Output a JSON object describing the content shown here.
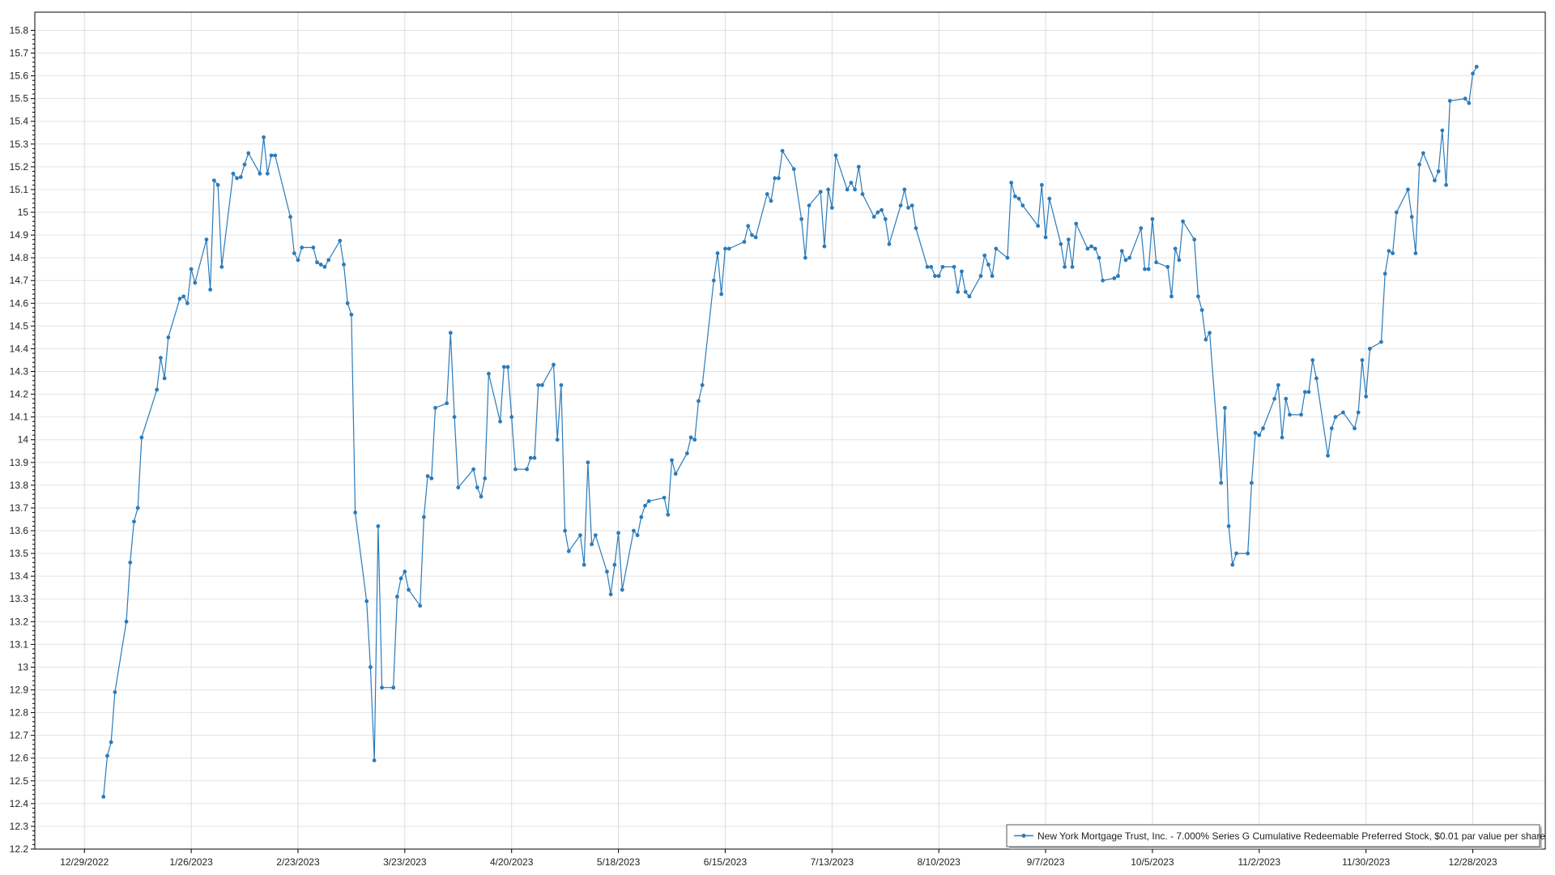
{
  "chart_data": {
    "type": "line",
    "title": "",
    "xlabel": "",
    "ylabel": "",
    "x_type": "date",
    "xlim": [
      "2022-12-16",
      "2024-01-16"
    ],
    "ylim": [
      12.2,
      15.88
    ],
    "grid": true,
    "legend_position": "bottom-right",
    "colors": {
      "series": "#2b7bba",
      "grid": "#e3e3e3",
      "axis": "#000000"
    },
    "x_ticks": [
      {
        "date": "2022-12-29",
        "label": "12/29/2022"
      },
      {
        "date": "2023-01-26",
        "label": "1/26/2023"
      },
      {
        "date": "2023-02-23",
        "label": "2/23/2023"
      },
      {
        "date": "2023-03-23",
        "label": "3/23/2023"
      },
      {
        "date": "2023-04-20",
        "label": "4/20/2023"
      },
      {
        "date": "2023-05-18",
        "label": "5/18/2023"
      },
      {
        "date": "2023-06-15",
        "label": "6/15/2023"
      },
      {
        "date": "2023-07-13",
        "label": "7/13/2023"
      },
      {
        "date": "2023-08-10",
        "label": "8/10/2023"
      },
      {
        "date": "2023-09-07",
        "label": "9/7/2023"
      },
      {
        "date": "2023-10-05",
        "label": "10/5/2023"
      },
      {
        "date": "2023-11-02",
        "label": "11/2/2023"
      },
      {
        "date": "2023-11-30",
        "label": "11/30/2023"
      },
      {
        "date": "2023-12-28",
        "label": "12/28/2023"
      }
    ],
    "y_ticks": [
      "12.2",
      "12.3",
      "12.4",
      "12.5",
      "12.6",
      "12.7",
      "12.8",
      "12.9",
      "13",
      "13.1",
      "13.2",
      "13.3",
      "13.4",
      "13.5",
      "13.6",
      "13.7",
      "13.8",
      "13.9",
      "14",
      "14.1",
      "14.2",
      "14.3",
      "14.4",
      "14.5",
      "14.6",
      "14.7",
      "14.8",
      "14.9",
      "15",
      "15.1",
      "15.2",
      "15.3",
      "15.4",
      "15.5",
      "15.6",
      "15.7",
      "15.8"
    ],
    "series": [
      {
        "name": "New York Mortgage Trust, Inc. - 7.000% Series G Cumulative Redeemable Preferred Stock, $0.01 par value per share",
        "marker": "circle",
        "points": [
          [
            "2023-01-03",
            12.43
          ],
          [
            "2023-01-04",
            12.61
          ],
          [
            "2023-01-05",
            12.67
          ],
          [
            "2023-01-06",
            12.89
          ],
          [
            "2023-01-09",
            13.2
          ],
          [
            "2023-01-10",
            13.46
          ],
          [
            "2023-01-11",
            13.64
          ],
          [
            "2023-01-12",
            13.7
          ],
          [
            "2023-01-13",
            14.01
          ],
          [
            "2023-01-17",
            14.22
          ],
          [
            "2023-01-18",
            14.36
          ],
          [
            "2023-01-19",
            14.27
          ],
          [
            "2023-01-20",
            14.45
          ],
          [
            "2023-01-23",
            14.62
          ],
          [
            "2023-01-24",
            14.63
          ],
          [
            "2023-01-25",
            14.6
          ],
          [
            "2023-01-26",
            14.75
          ],
          [
            "2023-01-27",
            14.69
          ],
          [
            "2023-01-30",
            14.88
          ],
          [
            "2023-01-31",
            14.66
          ],
          [
            "2023-02-01",
            15.14
          ],
          [
            "2023-02-02",
            15.12
          ],
          [
            "2023-02-03",
            14.76
          ],
          [
            "2023-02-06",
            15.17
          ],
          [
            "2023-02-07",
            15.15
          ],
          [
            "2023-02-08",
            15.155
          ],
          [
            "2023-02-09",
            15.21
          ],
          [
            "2023-02-10",
            15.26
          ],
          [
            "2023-02-13",
            15.17
          ],
          [
            "2023-02-14",
            15.33
          ],
          [
            "2023-02-15",
            15.17
          ],
          [
            "2023-02-16",
            15.25
          ],
          [
            "2023-02-17",
            15.25
          ],
          [
            "2023-02-21",
            14.98
          ],
          [
            "2023-02-22",
            14.82
          ],
          [
            "2023-02-23",
            14.79
          ],
          [
            "2023-02-24",
            14.845
          ],
          [
            "2023-02-27",
            14.845
          ],
          [
            "2023-02-28",
            14.78
          ],
          [
            "2023-03-01",
            14.77
          ],
          [
            "2023-03-02",
            14.76
          ],
          [
            "2023-03-03",
            14.79
          ],
          [
            "2023-03-06",
            14.875
          ],
          [
            "2023-03-07",
            14.77
          ],
          [
            "2023-03-08",
            14.6
          ],
          [
            "2023-03-09",
            14.55
          ],
          [
            "2023-03-10",
            13.68
          ],
          [
            "2023-03-13",
            13.29
          ],
          [
            "2023-03-14",
            13.0
          ],
          [
            "2023-03-15",
            12.59
          ],
          [
            "2023-03-16",
            13.62
          ],
          [
            "2023-03-17",
            12.91
          ],
          [
            "2023-03-20",
            12.91
          ],
          [
            "2023-03-21",
            13.31
          ],
          [
            "2023-03-22",
            13.39
          ],
          [
            "2023-03-23",
            13.42
          ],
          [
            "2023-03-24",
            13.34
          ],
          [
            "2023-03-27",
            13.27
          ],
          [
            "2023-03-28",
            13.66
          ],
          [
            "2023-03-29",
            13.84
          ],
          [
            "2023-03-30",
            13.83
          ],
          [
            "2023-03-31",
            14.14
          ],
          [
            "2023-04-03",
            14.16
          ],
          [
            "2023-04-04",
            14.47
          ],
          [
            "2023-04-05",
            14.1
          ],
          [
            "2023-04-06",
            13.79
          ],
          [
            "2023-04-10",
            13.87
          ],
          [
            "2023-04-11",
            13.79
          ],
          [
            "2023-04-12",
            13.75
          ],
          [
            "2023-04-13",
            13.83
          ],
          [
            "2023-04-14",
            14.29
          ],
          [
            "2023-04-17",
            14.08
          ],
          [
            "2023-04-18",
            14.32
          ],
          [
            "2023-04-19",
            14.32
          ],
          [
            "2023-04-20",
            14.1
          ],
          [
            "2023-04-21",
            13.87
          ],
          [
            "2023-04-24",
            13.87
          ],
          [
            "2023-04-25",
            13.92
          ],
          [
            "2023-04-26",
            13.92
          ],
          [
            "2023-04-27",
            14.24
          ],
          [
            "2023-04-28",
            14.24
          ],
          [
            "2023-05-01",
            14.33
          ],
          [
            "2023-05-02",
            14.0
          ],
          [
            "2023-05-03",
            14.24
          ],
          [
            "2023-05-04",
            13.6
          ],
          [
            "2023-05-05",
            13.51
          ],
          [
            "2023-05-08",
            13.58
          ],
          [
            "2023-05-09",
            13.45
          ],
          [
            "2023-05-10",
            13.9
          ],
          [
            "2023-05-11",
            13.54
          ],
          [
            "2023-05-12",
            13.58
          ],
          [
            "2023-05-15",
            13.42
          ],
          [
            "2023-05-16",
            13.32
          ],
          [
            "2023-05-17",
            13.45
          ],
          [
            "2023-05-18",
            13.59
          ],
          [
            "2023-05-19",
            13.34
          ],
          [
            "2023-05-22",
            13.6
          ],
          [
            "2023-05-23",
            13.58
          ],
          [
            "2023-05-24",
            13.66
          ],
          [
            "2023-05-25",
            13.71
          ],
          [
            "2023-05-26",
            13.73
          ],
          [
            "2023-05-30",
            13.745
          ],
          [
            "2023-05-31",
            13.67
          ],
          [
            "2023-06-01",
            13.91
          ],
          [
            "2023-06-02",
            13.85
          ],
          [
            "2023-06-05",
            13.94
          ],
          [
            "2023-06-06",
            14.01
          ],
          [
            "2023-06-07",
            14.0
          ],
          [
            "2023-06-08",
            14.17
          ],
          [
            "2023-06-09",
            14.24
          ],
          [
            "2023-06-12",
            14.7
          ],
          [
            "2023-06-13",
            14.82
          ],
          [
            "2023-06-14",
            14.64
          ],
          [
            "2023-06-15",
            14.84
          ],
          [
            "2023-06-16",
            14.84
          ],
          [
            "2023-06-20",
            14.87
          ],
          [
            "2023-06-21",
            14.94
          ],
          [
            "2023-06-22",
            14.9
          ],
          [
            "2023-06-23",
            14.89
          ],
          [
            "2023-06-26",
            15.08
          ],
          [
            "2023-06-27",
            15.05
          ],
          [
            "2023-06-28",
            15.15
          ],
          [
            "2023-06-29",
            15.15
          ],
          [
            "2023-06-30",
            15.27
          ],
          [
            "2023-07-03",
            15.19
          ],
          [
            "2023-07-05",
            14.97
          ],
          [
            "2023-07-06",
            14.8
          ],
          [
            "2023-07-07",
            15.03
          ],
          [
            "2023-07-10",
            15.09
          ],
          [
            "2023-07-11",
            14.85
          ],
          [
            "2023-07-12",
            15.1
          ],
          [
            "2023-07-13",
            15.02
          ],
          [
            "2023-07-14",
            15.25
          ],
          [
            "2023-07-17",
            15.1
          ],
          [
            "2023-07-18",
            15.13
          ],
          [
            "2023-07-19",
            15.1
          ],
          [
            "2023-07-20",
            15.2
          ],
          [
            "2023-07-21",
            15.08
          ],
          [
            "2023-07-24",
            14.98
          ],
          [
            "2023-07-25",
            15.0
          ],
          [
            "2023-07-26",
            15.01
          ],
          [
            "2023-07-27",
            14.97
          ],
          [
            "2023-07-28",
            14.86
          ],
          [
            "2023-07-31",
            15.03
          ],
          [
            "2023-08-01",
            15.1
          ],
          [
            "2023-08-02",
            15.02
          ],
          [
            "2023-08-03",
            15.03
          ],
          [
            "2023-08-04",
            14.93
          ],
          [
            "2023-08-07",
            14.76
          ],
          [
            "2023-08-08",
            14.76
          ],
          [
            "2023-08-09",
            14.72
          ],
          [
            "2023-08-10",
            14.72
          ],
          [
            "2023-08-11",
            14.76
          ],
          [
            "2023-08-14",
            14.76
          ],
          [
            "2023-08-15",
            14.65
          ],
          [
            "2023-08-16",
            14.74
          ],
          [
            "2023-08-17",
            14.65
          ],
          [
            "2023-08-18",
            14.63
          ],
          [
            "2023-08-21",
            14.72
          ],
          [
            "2023-08-22",
            14.81
          ],
          [
            "2023-08-23",
            14.77
          ],
          [
            "2023-08-24",
            14.72
          ],
          [
            "2023-08-25",
            14.84
          ],
          [
            "2023-08-28",
            14.8
          ],
          [
            "2023-08-29",
            15.13
          ],
          [
            "2023-08-30",
            15.07
          ],
          [
            "2023-08-31",
            15.06
          ],
          [
            "2023-09-01",
            15.03
          ],
          [
            "2023-09-05",
            14.94
          ],
          [
            "2023-09-06",
            15.12
          ],
          [
            "2023-09-07",
            14.89
          ],
          [
            "2023-09-08",
            15.06
          ],
          [
            "2023-09-11",
            14.86
          ],
          [
            "2023-09-12",
            14.76
          ],
          [
            "2023-09-13",
            14.88
          ],
          [
            "2023-09-14",
            14.76
          ],
          [
            "2023-09-15",
            14.95
          ],
          [
            "2023-09-18",
            14.84
          ],
          [
            "2023-09-19",
            14.85
          ],
          [
            "2023-09-20",
            14.84
          ],
          [
            "2023-09-21",
            14.8
          ],
          [
            "2023-09-22",
            14.7
          ],
          [
            "2023-09-25",
            14.71
          ],
          [
            "2023-09-26",
            14.72
          ],
          [
            "2023-09-27",
            14.83
          ],
          [
            "2023-09-28",
            14.79
          ],
          [
            "2023-09-29",
            14.8
          ],
          [
            "2023-10-02",
            14.93
          ],
          [
            "2023-10-03",
            14.75
          ],
          [
            "2023-10-04",
            14.75
          ],
          [
            "2023-10-05",
            14.97
          ],
          [
            "2023-10-06",
            14.78
          ],
          [
            "2023-10-09",
            14.76
          ],
          [
            "2023-10-10",
            14.63
          ],
          [
            "2023-10-11",
            14.84
          ],
          [
            "2023-10-12",
            14.79
          ],
          [
            "2023-10-13",
            14.96
          ],
          [
            "2023-10-16",
            14.88
          ],
          [
            "2023-10-17",
            14.63
          ],
          [
            "2023-10-18",
            14.57
          ],
          [
            "2023-10-19",
            14.44
          ],
          [
            "2023-10-20",
            14.47
          ],
          [
            "2023-10-23",
            13.81
          ],
          [
            "2023-10-24",
            14.14
          ],
          [
            "2023-10-25",
            13.62
          ],
          [
            "2023-10-26",
            13.45
          ],
          [
            "2023-10-27",
            13.5
          ],
          [
            "2023-10-30",
            13.5
          ],
          [
            "2023-10-31",
            13.81
          ],
          [
            "2023-11-01",
            14.03
          ],
          [
            "2023-11-02",
            14.02
          ],
          [
            "2023-11-03",
            14.05
          ],
          [
            "2023-11-06",
            14.18
          ],
          [
            "2023-11-07",
            14.24
          ],
          [
            "2023-11-08",
            14.01
          ],
          [
            "2023-11-09",
            14.18
          ],
          [
            "2023-11-10",
            14.11
          ],
          [
            "2023-11-13",
            14.11
          ],
          [
            "2023-11-14",
            14.21
          ],
          [
            "2023-11-15",
            14.21
          ],
          [
            "2023-11-16",
            14.35
          ],
          [
            "2023-11-17",
            14.27
          ],
          [
            "2023-11-20",
            13.93
          ],
          [
            "2023-11-21",
            14.05
          ],
          [
            "2023-11-22",
            14.1
          ],
          [
            "2023-11-24",
            14.12
          ],
          [
            "2023-11-27",
            14.05
          ],
          [
            "2023-11-28",
            14.12
          ],
          [
            "2023-11-29",
            14.35
          ],
          [
            "2023-11-30",
            14.19
          ],
          [
            "2023-12-01",
            14.4
          ],
          [
            "2023-12-04",
            14.43
          ],
          [
            "2023-12-05",
            14.73
          ],
          [
            "2023-12-06",
            14.83
          ],
          [
            "2023-12-07",
            14.82
          ],
          [
            "2023-12-08",
            15.0
          ],
          [
            "2023-12-11",
            15.1
          ],
          [
            "2023-12-12",
            14.98
          ],
          [
            "2023-12-13",
            14.82
          ],
          [
            "2023-12-14",
            15.21
          ],
          [
            "2023-12-15",
            15.26
          ],
          [
            "2023-12-18",
            15.14
          ],
          [
            "2023-12-19",
            15.18
          ],
          [
            "2023-12-20",
            15.36
          ],
          [
            "2023-12-21",
            15.12
          ],
          [
            "2023-12-22",
            15.49
          ],
          [
            "2023-12-26",
            15.5
          ],
          [
            "2023-12-27",
            15.48
          ],
          [
            "2023-12-28",
            15.61
          ],
          [
            "2023-12-29",
            15.64
          ]
        ]
      }
    ]
  }
}
